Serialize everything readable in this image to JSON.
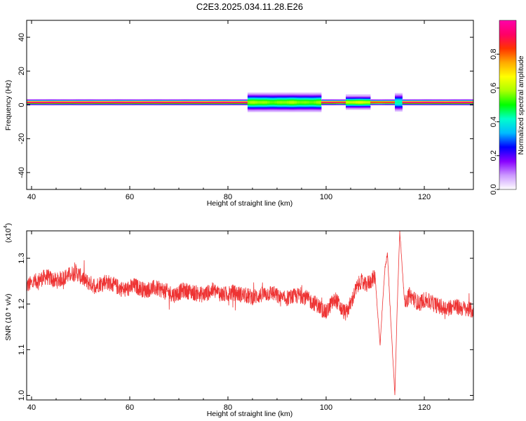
{
  "title": "C2E3.2025.034.11.28.E26",
  "chart_data": [
    {
      "type": "heatmap",
      "xlabel": "Height of straight line (km)",
      "ylabel": "Frequency (Hz)",
      "xlim": [
        39,
        130
      ],
      "ylim": [
        -50,
        50
      ],
      "xticks": [
        40,
        60,
        80,
        100,
        120
      ],
      "yticks": [
        -40,
        -20,
        0,
        20,
        40
      ],
      "colorbar": {
        "label": "Normalized spectral amplitude",
        "range": [
          0,
          1
        ],
        "ticks": [
          "0.0",
          "0.2",
          "0.4",
          "0.6",
          "0.8"
        ],
        "colors": [
          "#ffffff",
          "#cc99ff",
          "#8800ff",
          "#0000ff",
          "#00bbff",
          "#00ffcc",
          "#00ff00",
          "#aaff00",
          "#ffff00",
          "#ffaa00",
          "#ff3300",
          "#ff0066",
          "#ff00aa"
        ]
      },
      "band": {
        "center_hz": 1.5,
        "segments": [
          {
            "x0": 39,
            "x1": 84,
            "peak": 0.95
          },
          {
            "x0": 84,
            "x1": 99,
            "peak": 0.45,
            "spread_hz": 3
          },
          {
            "x0": 99,
            "x1": 104,
            "peak": 0.9
          },
          {
            "x0": 104,
            "x1": 109,
            "peak": 0.5,
            "spread_hz": 2
          },
          {
            "x0": 109,
            "x1": 114,
            "peak": 0.85
          },
          {
            "x0": 114,
            "x1": 115.5,
            "peak": 0.3,
            "spread_hz": 3
          },
          {
            "x0": 115.5,
            "x1": 130,
            "peak": 0.95
          }
        ]
      }
    },
    {
      "type": "line",
      "xlabel": "Height of straight line (km)",
      "ylabel": "SNR (10 * v/v)",
      "yscale_label": "(x10",
      "yscale_exp": "4",
      "xlim": [
        39,
        130
      ],
      "ylim": [
        0.99,
        1.36
      ],
      "xticks": [
        40,
        60,
        80,
        100,
        120
      ],
      "yticks": [
        "1.0",
        "1.1",
        "1.2",
        "1.3"
      ],
      "color": "#ee3333",
      "series": [
        {
          "x": [
            39,
            41,
            43,
            45,
            47,
            49,
            51,
            53,
            55,
            57,
            59,
            61,
            63,
            65,
            67,
            69,
            71,
            73,
            75,
            77,
            79,
            81,
            83,
            85,
            87,
            89,
            91,
            93,
            95,
            97,
            98,
            99,
            100,
            101,
            102,
            103,
            104,
            105,
            106,
            107,
            108,
            109,
            110,
            110.5,
            111,
            111.5,
            112,
            112.5,
            113,
            113.5,
            114,
            114.5,
            115,
            115.5,
            116,
            116.5,
            117,
            118,
            119,
            120,
            122,
            124,
            126,
            128,
            130
          ],
          "y": [
            1.24,
            1.25,
            1.26,
            1.25,
            1.26,
            1.27,
            1.25,
            1.24,
            1.25,
            1.24,
            1.23,
            1.24,
            1.23,
            1.235,
            1.23,
            1.22,
            1.23,
            1.225,
            1.22,
            1.23,
            1.22,
            1.225,
            1.22,
            1.215,
            1.22,
            1.225,
            1.21,
            1.215,
            1.22,
            1.205,
            1.2,
            1.19,
            1.18,
            1.2,
            1.21,
            1.19,
            1.18,
            1.2,
            1.23,
            1.25,
            1.24,
            1.25,
            1.26,
            1.18,
            1.11,
            1.2,
            1.28,
            1.31,
            1.2,
            1.1,
            1.0,
            1.2,
            1.36,
            1.28,
            1.2,
            1.21,
            1.22,
            1.21,
            1.2,
            1.21,
            1.2,
            1.19,
            1.195,
            1.19,
            1.185
          ],
          "noise": 0.018
        }
      ]
    }
  ]
}
